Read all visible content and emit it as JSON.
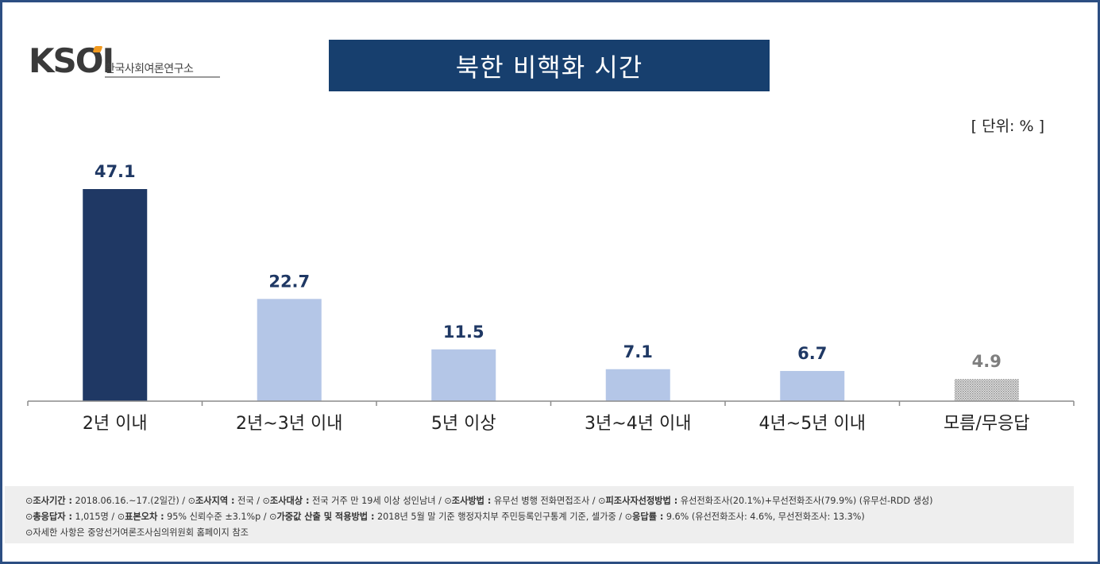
{
  "logo": {
    "brand": "KSOI",
    "subtitle": "한국사회여론연구소",
    "accent": "#f29a1f"
  },
  "title": "북한 비핵화 시간",
  "unit_label": "[ 단위: % ]",
  "chart_data": {
    "type": "bar",
    "title": "북한 비핵화 시간",
    "categories": [
      "2년 이내",
      "2년~3년 이내",
      "5년 이상",
      "3년~4년 이내",
      "4년~5년 이내",
      "모름/무응답"
    ],
    "values": [
      47.1,
      22.7,
      11.5,
      7.1,
      6.7,
      4.9
    ],
    "value_labels": [
      "47.1",
      "22.7",
      "11.5",
      "7.1",
      "6.7",
      "4.9"
    ],
    "ylim": [
      0,
      50
    ],
    "grid": false,
    "colors": [
      "#1f3864",
      "#b4c6e7",
      "#b4c6e7",
      "#b4c6e7",
      "#b4c6e7",
      "#bfbfbf"
    ],
    "label_colors": [
      "#1f3864",
      "#1f3864",
      "#1f3864",
      "#1f3864",
      "#1f3864",
      "#7f7f7f"
    ]
  },
  "footer": {
    "line1": [
      {
        "key": "조사기간 :",
        "val": " 2018.06.16.~17.(2일간) / "
      },
      {
        "key": "조사지역 :",
        "val": " 전국 / "
      },
      {
        "key": "조사대상 :",
        "val": " 전국 거주 만 19세 이상 성인남녀 / "
      },
      {
        "key": "조사방법 :",
        "val": " 유무선 병행 전화면접조사 / "
      },
      {
        "key": "피조사자선정방법 :",
        "val": " 유선전화조사(20.1%)+무선전화조사(79.9%) (유무선-RDD 생성)"
      }
    ],
    "line2": [
      {
        "key": "총응답자 :",
        "val": " 1,015명 / "
      },
      {
        "key": "표본오차 :",
        "val": " 95% 신뢰수준 ±3.1%p / "
      },
      {
        "key": "가중값 산출 및 적용방법 :",
        "val": " 2018년 5월 말 기준 행정자치부 주민등록인구통계 기준, 셀가중 / "
      },
      {
        "key": "응답률 :",
        "val": " 9.6% (유선전화조사: 4.6%, 무선전화조사: 13.3%)"
      }
    ],
    "line3": "자세한 사항은 중앙선거여론조사심의위원회 홈페이지 참조",
    "bullet": "⊙"
  }
}
